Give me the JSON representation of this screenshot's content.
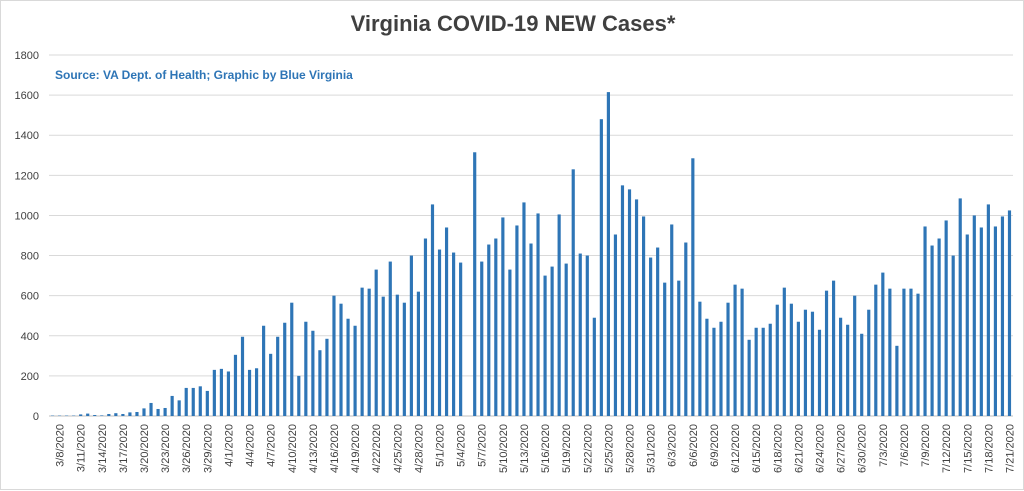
{
  "chart_data": {
    "type": "bar",
    "title": "Virginia COVID-19 NEW Cases*",
    "subtitle": "Source: VA Dept. of Health; Graphic by Blue Virginia",
    "xlabel": "",
    "ylabel": "",
    "ylim": [
      0,
      1800
    ],
    "yticks": [
      0,
      200,
      400,
      600,
      800,
      1000,
      1200,
      1400,
      1600,
      1800
    ],
    "grid": true,
    "legend": "none",
    "bar_color": "#2e75b6",
    "start_date": "2020-03-07",
    "x_tick_labels": [
      "3/8/2020",
      "3/11/2020",
      "3/14/2020",
      "3/17/2020",
      "3/20/2020",
      "3/23/2020",
      "3/26/2020",
      "3/29/2020",
      "4/1/2020",
      "4/4/2020",
      "4/7/2020",
      "4/10/2020",
      "4/13/2020",
      "4/16/2020",
      "4/19/2020",
      "4/22/2020",
      "4/25/2020",
      "4/28/2020",
      "5/1/2020",
      "5/4/2020",
      "5/7/2020",
      "5/10/2020",
      "5/13/2020",
      "5/16/2020",
      "5/19/2020",
      "5/22/2020",
      "5/25/2020",
      "5/28/2020",
      "5/31/2020",
      "6/3/2020",
      "6/6/2020",
      "6/9/2020",
      "6/12/2020",
      "6/15/2020",
      "6/18/2020",
      "6/21/2020",
      "6/24/2020",
      "6/27/2020",
      "6/30/2020",
      "7/3/2020",
      "7/6/2020",
      "7/9/2020",
      "7/12/2020",
      "7/15/2020",
      "7/18/2020",
      "7/21/2020"
    ],
    "values": [
      2,
      2,
      2,
      2,
      8,
      12,
      5,
      3,
      10,
      14,
      10,
      18,
      20,
      38,
      65,
      35,
      40,
      100,
      78,
      140,
      140,
      148,
      125,
      230,
      235,
      222,
      305,
      395,
      230,
      238,
      450,
      310,
      395,
      465,
      565,
      200,
      470,
      425,
      328,
      385,
      600,
      560,
      485,
      450,
      640,
      635,
      730,
      595,
      770,
      605,
      565,
      800,
      620,
      885,
      1055,
      830,
      940,
      815,
      765,
      0,
      1315,
      770,
      855,
      885,
      990,
      730,
      950,
      1065,
      860,
      1010,
      700,
      745,
      1005,
      760,
      1230,
      810,
      800,
      490,
      1480,
      1615,
      905,
      1150,
      1130,
      1080,
      995,
      790,
      840,
      665,
      955,
      675,
      865,
      1285,
      570,
      485,
      440,
      470,
      565,
      655,
      635,
      380,
      440,
      440,
      460,
      555,
      640,
      560,
      470,
      530,
      520,
      430,
      625,
      675,
      490,
      455,
      600,
      410,
      530,
      655,
      715,
      635,
      350,
      635,
      635,
      610,
      945,
      850,
      885,
      975,
      800,
      1085,
      905,
      1000,
      940,
      1055,
      945,
      995,
      1025
    ]
  }
}
